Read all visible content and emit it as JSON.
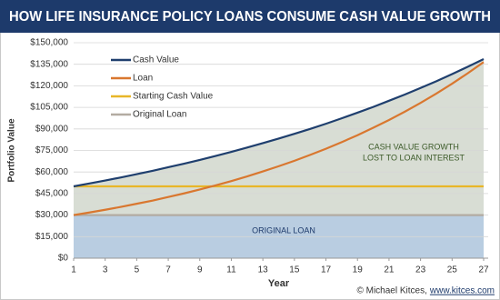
{
  "chart_data": {
    "type": "line",
    "title": "HOW LIFE INSURANCE POLICY LOANS CONSUME CASH VALUE GROWTH",
    "xlabel": "Year",
    "ylabel": "Portfolio Value",
    "x": [
      1,
      2,
      3,
      4,
      5,
      6,
      7,
      8,
      9,
      10,
      11,
      12,
      13,
      14,
      15,
      16,
      17,
      18,
      19,
      20,
      21,
      22,
      23,
      24,
      25,
      26,
      27
    ],
    "series": [
      {
        "name": "Cash Value",
        "color": "#1f3f6e",
        "values": [
          50000,
          52000,
          54100,
          56200,
          58500,
          60800,
          63300,
          65800,
          68400,
          71200,
          74000,
          77000,
          80100,
          83300,
          86600,
          90000,
          93600,
          97400,
          101300,
          105300,
          109600,
          113900,
          118500,
          123200,
          128200,
          133300,
          138600
        ]
      },
      {
        "name": "Loan",
        "color": "#d9772f",
        "values": [
          30000,
          31800,
          33700,
          35700,
          37900,
          40100,
          42600,
          45100,
          47800,
          50700,
          53700,
          56900,
          60400,
          64000,
          67800,
          71900,
          76200,
          80800,
          85600,
          90800,
          96200,
          102000,
          108100,
          114600,
          121500,
          128800,
          136500
        ]
      },
      {
        "name": "Starting Cash Value",
        "color": "#e8b628",
        "values": [
          50000,
          50000,
          50000,
          50000,
          50000,
          50000,
          50000,
          50000,
          50000,
          50000,
          50000,
          50000,
          50000,
          50000,
          50000,
          50000,
          50000,
          50000,
          50000,
          50000,
          50000,
          50000,
          50000,
          50000,
          50000,
          50000,
          50000
        ]
      },
      {
        "name": "Original Loan",
        "color": "#b3aca2",
        "values": [
          30000,
          30000,
          30000,
          30000,
          30000,
          30000,
          30000,
          30000,
          30000,
          30000,
          30000,
          30000,
          30000,
          30000,
          30000,
          30000,
          30000,
          30000,
          30000,
          30000,
          30000,
          30000,
          30000,
          30000,
          30000,
          30000,
          30000
        ]
      }
    ],
    "xlim": [
      1,
      27
    ],
    "xticks": [
      1,
      3,
      5,
      7,
      9,
      11,
      13,
      15,
      17,
      19,
      21,
      23,
      25,
      27
    ],
    "ylim": [
      0,
      150000
    ],
    "yticks": [
      {
        "value": 0,
        "label": "$0"
      },
      {
        "value": 15000,
        "label": "$15,000"
      },
      {
        "value": 30000,
        "label": "$30,000"
      },
      {
        "value": 45000,
        "label": "$45,000"
      },
      {
        "value": 60000,
        "label": "$60,000"
      },
      {
        "value": 75000,
        "label": "$75,000"
      },
      {
        "value": 90000,
        "label": "$90,000"
      },
      {
        "value": 105000,
        "label": "$105,000"
      },
      {
        "value": 120000,
        "label": "$120,000"
      },
      {
        "value": 135000,
        "label": "$135,000"
      },
      {
        "value": 150000,
        "label": "$150,000"
      }
    ],
    "grid": true,
    "legend": "upper left",
    "annotations": [
      "CASH VALUE GROWTH",
      "LOST TO LOAN INTEREST",
      "ORIGINAL LOAN"
    ],
    "credit": "© Michael Kitces,",
    "credit_link": "www.kitces.com"
  }
}
